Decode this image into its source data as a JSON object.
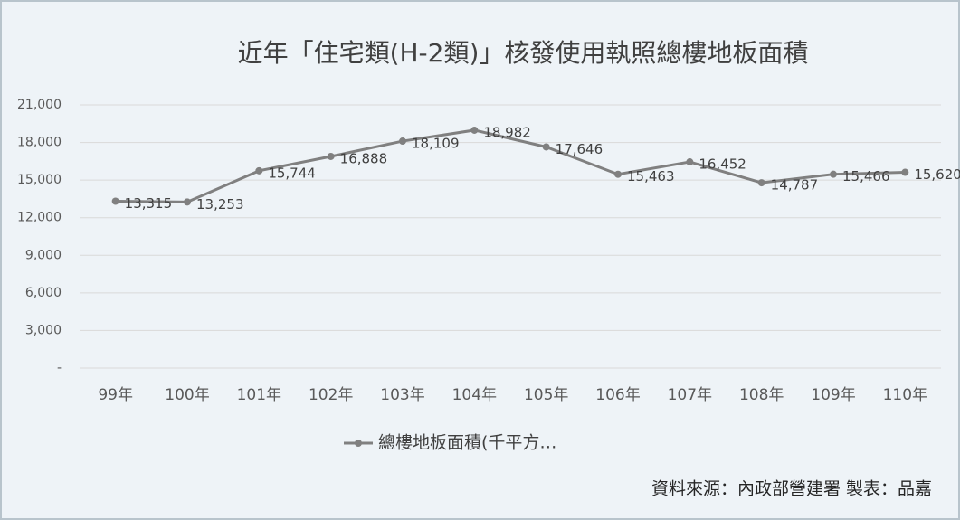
{
  "chart_data": {
    "type": "line",
    "title": "近年「住宅類(H-2類)」核發使用執照總樓地板面積",
    "categories": [
      "99年",
      "100年",
      "101年",
      "102年",
      "103年",
      "104年",
      "105年",
      "106年",
      "107年",
      "108年",
      "109年",
      "110年"
    ],
    "series": [
      {
        "name": "總樓地板面積(千平方…",
        "color": "#808080",
        "values": [
          13315,
          13253,
          15744,
          16888,
          18109,
          18982,
          17646,
          15463,
          16452,
          14787,
          15466,
          15620
        ],
        "value_labels": [
          "13,315",
          "13,253",
          "15,744",
          "16,888",
          "18,109",
          "18,982",
          "17,646",
          "15,463",
          "16,452",
          "14,787",
          "15,466",
          "15,620"
        ]
      }
    ],
    "ylim": [
      0,
      21000
    ],
    "yticks": [
      {
        "value": 0,
        "label": "-"
      },
      {
        "value": 3000,
        "label": "3,000"
      },
      {
        "value": 6000,
        "label": "6,000"
      },
      {
        "value": 9000,
        "label": "9,000"
      },
      {
        "value": 12000,
        "label": "12,000"
      },
      {
        "value": 15000,
        "label": "15,000"
      },
      {
        "value": 18000,
        "label": "18,000"
      },
      {
        "value": 21000,
        "label": "21,000"
      }
    ],
    "grid": true,
    "legend": "bottom",
    "source": "資料來源：內政部營建署 製表：品嘉"
  }
}
